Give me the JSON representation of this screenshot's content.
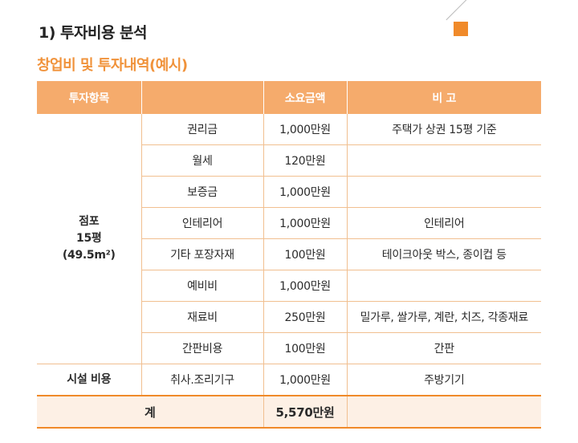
{
  "heading": "1) 투자비용 분석",
  "subtitle": "창업비 및 투자내역(예시)",
  "table": {
    "headers": [
      "투자항목",
      "",
      "소요금액",
      "비 고"
    ],
    "group_store": {
      "line1": "점포",
      "line2": "15평",
      "line3": "(49.5m²)"
    },
    "rows": [
      {
        "item": "권리금",
        "amount": "1,000만원",
        "note": "주택가 상권 15평 기준"
      },
      {
        "item": "월세",
        "amount": "120만원",
        "note": ""
      },
      {
        "item": "보증금",
        "amount": "1,000만원",
        "note": ""
      },
      {
        "item": "인테리어",
        "amount": "1,000만원",
        "note": "인테리어"
      },
      {
        "item": "기타 포장자재",
        "amount": "100만원",
        "note": "테이크아웃 박스, 종이컵 등"
      },
      {
        "item": "예비비",
        "amount": "1,000만원",
        "note": ""
      },
      {
        "item": "재료비",
        "amount": "250만원",
        "note": "밀가루, 쌀가루, 계란, 치즈, 각종재료"
      },
      {
        "item": "간판비용",
        "amount": "100만원",
        "note": "간판"
      }
    ],
    "facility": {
      "group": "시설 비용",
      "item": "취사.조리기구",
      "amount": "1,000만원",
      "note": "주방기기"
    },
    "total": {
      "label": "계",
      "amount": "5,570만원",
      "note": ""
    }
  },
  "colors": {
    "accent": "#f08a2a",
    "header_bg": "#f5ab6c",
    "subtitle": "#f0923a"
  }
}
